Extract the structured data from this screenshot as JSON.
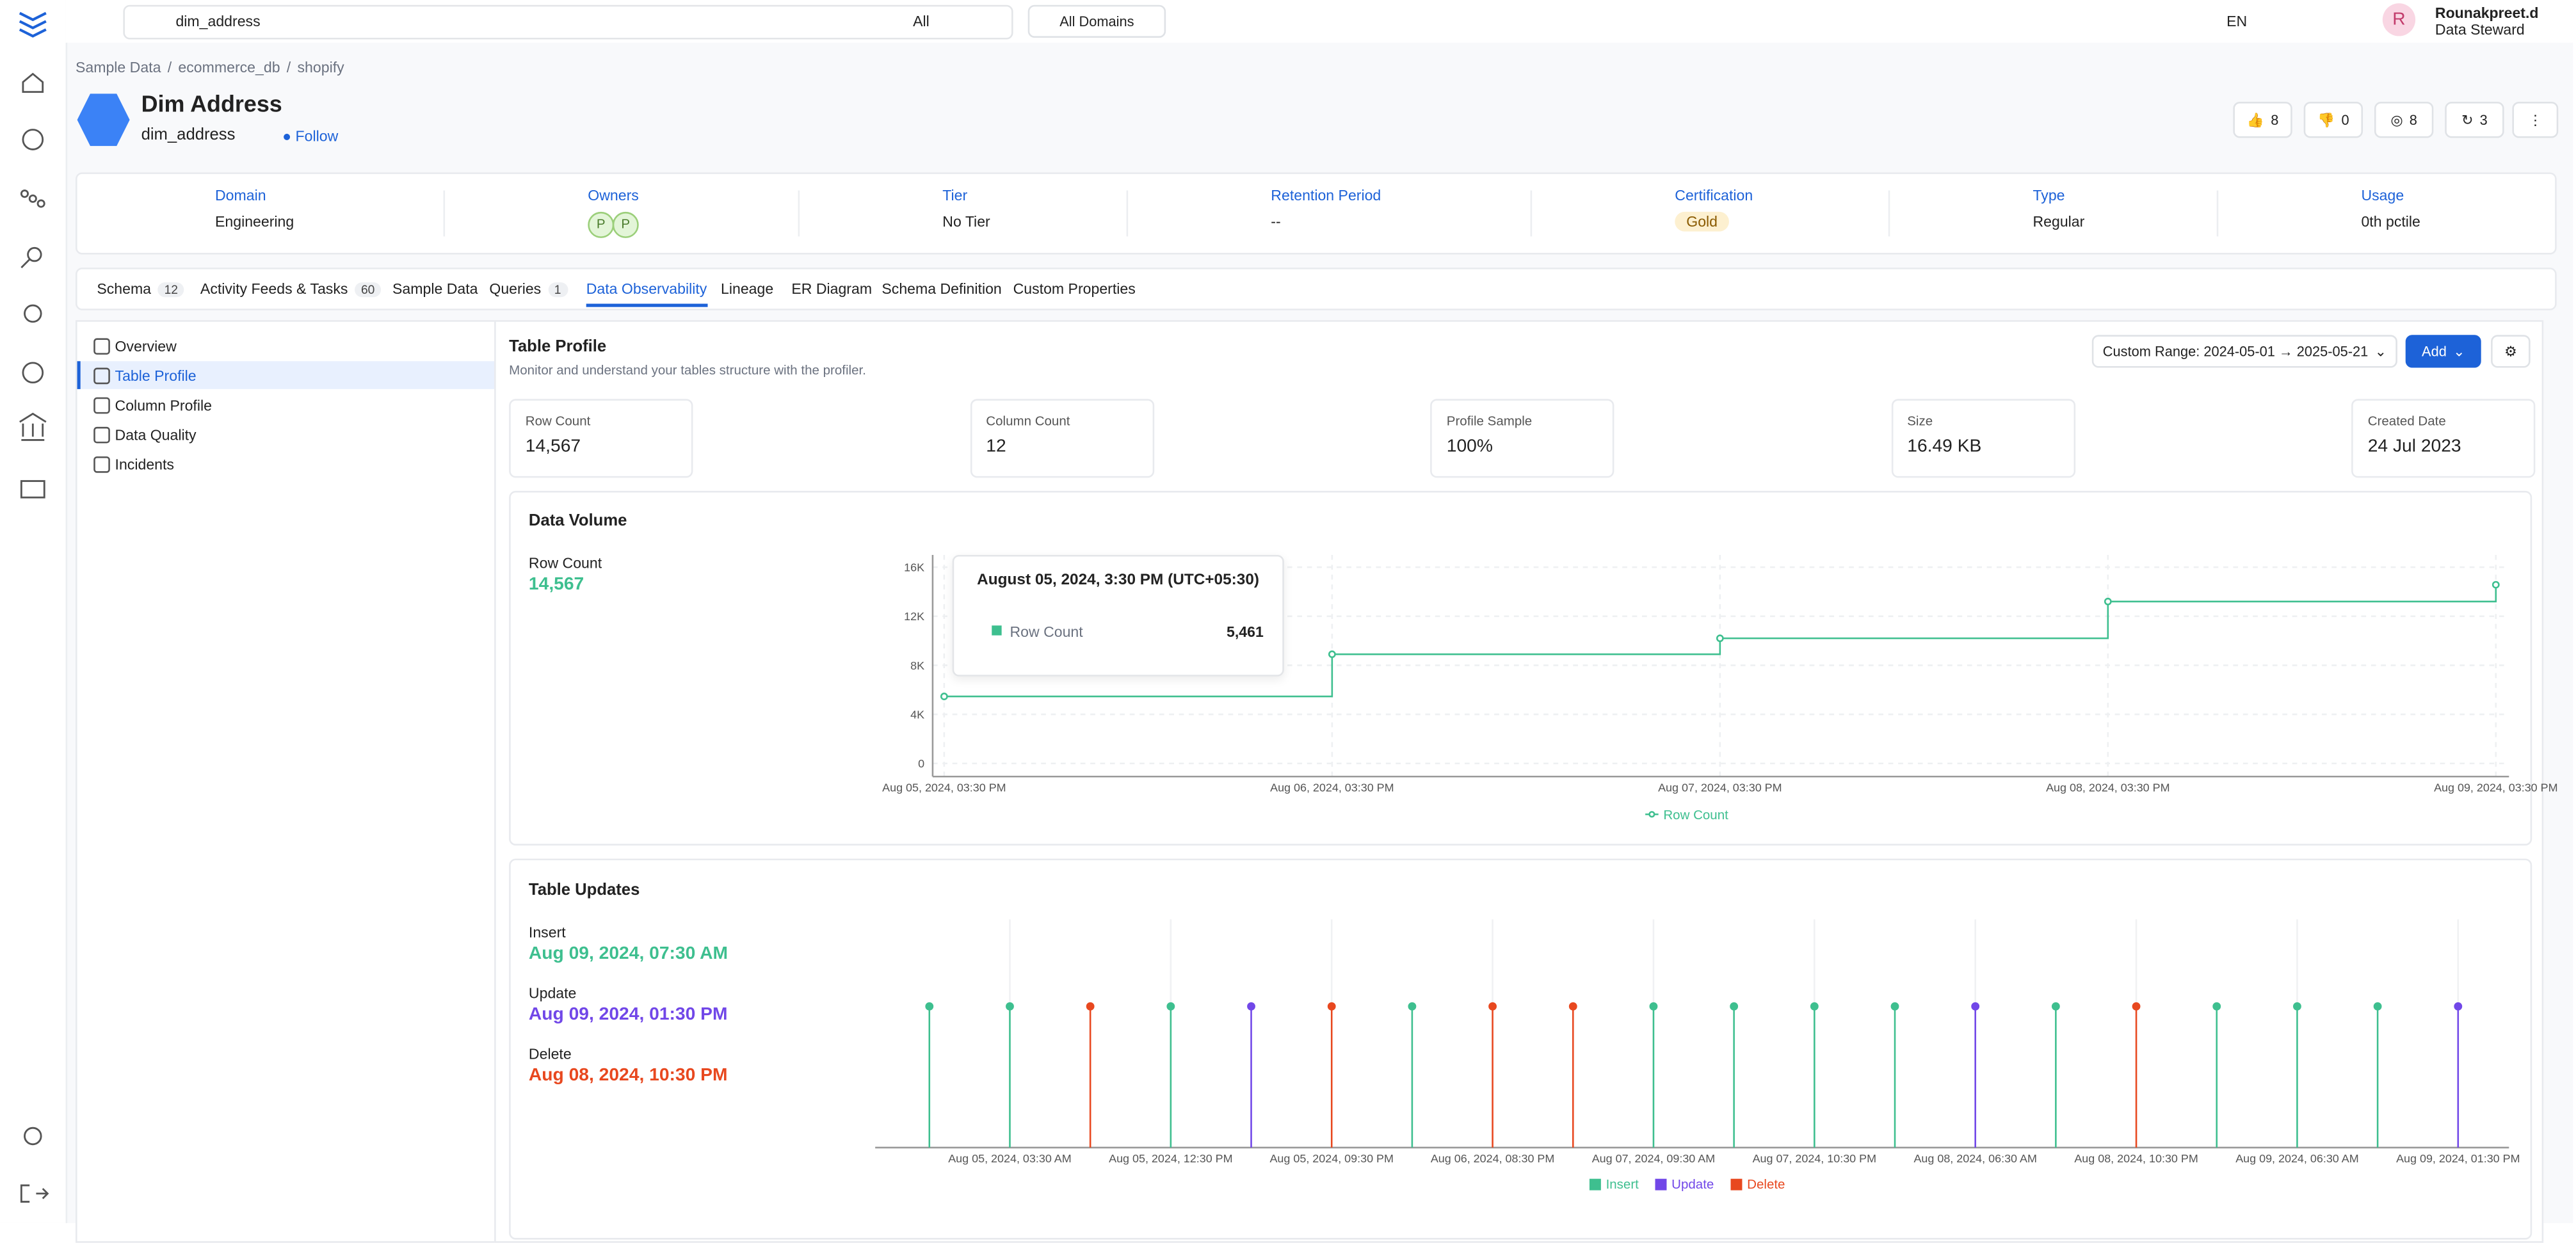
{
  "top_bar": {
    "search": "dim_address",
    "filter": "All",
    "domains": "All Domains",
    "lang": "EN",
    "user": {
      "initial": "R",
      "name": "Rounakpreet.d",
      "role": "Data Steward"
    }
  },
  "breadcrumb": [
    "Sample Data",
    "ecommerce_db",
    "shopify"
  ],
  "header": {
    "title": "Dim Address",
    "fqn": "dim_address",
    "follow": "Follow",
    "up_votes": 8,
    "down_votes": 0,
    "followers": 8,
    "versions": 3
  },
  "info": [
    {
      "label": "Domain",
      "value": "Engineering"
    },
    {
      "label": "Owners",
      "avatars": [
        "P",
        "P"
      ]
    },
    {
      "label": "Tier",
      "value": "No Tier"
    },
    {
      "label": "Retention Period",
      "value": "--"
    },
    {
      "label": "Certification",
      "value": "Gold"
    },
    {
      "label": "Type",
      "value": "Regular"
    },
    {
      "label": "Usage",
      "value": "0th pctile"
    }
  ],
  "tabs": [
    {
      "name": "Schema",
      "count": 12
    },
    {
      "name": "Activity Feeds & Tasks",
      "count": 60
    },
    {
      "name": "Sample Data"
    },
    {
      "name": "Queries",
      "count": 1
    },
    {
      "name": "Data Observability"
    },
    {
      "name": "Lineage"
    },
    {
      "name": "ER Diagram"
    },
    {
      "name": "Schema Definition"
    },
    {
      "name": "Custom Properties"
    }
  ],
  "side_menu": [
    "Overview",
    "Table Profile",
    "Column Profile",
    "Data Quality",
    "Incidents"
  ],
  "profile": {
    "title": "Table Profile",
    "subtitle": "Monitor and understand your tables structure with the profiler.",
    "range": "Custom Range: 2024-05-01 → 2025-05-21",
    "add": "Add",
    "stats": [
      {
        "label": "Row Count",
        "value": "14,567"
      },
      {
        "label": "Column Count",
        "value": "12"
      },
      {
        "label": "Profile Sample",
        "value": "100%"
      },
      {
        "label": "Size",
        "value": "16.49 KB"
      },
      {
        "label": "Created Date",
        "value": "24 Jul 2023"
      }
    ]
  },
  "data_volume": {
    "type": "line",
    "title": "Data Volume",
    "metric": "Row Count",
    "latest": "14,567",
    "categories": [
      "Aug 05, 2024, 03:30 PM",
      "Aug 06, 2024, 03:30 PM",
      "Aug 07, 2024, 03:30 PM",
      "Aug 08, 2024, 03:30 PM",
      "Aug 09, 2024, 03:30 PM"
    ],
    "series": [
      {
        "name": "Row Count",
        "color": "#3ebf8f",
        "values": [
          5461,
          8900,
          10200,
          13200,
          14567
        ]
      }
    ],
    "ylim": [
      0,
      17000
    ],
    "yticks": [
      {
        "value": 0,
        "label": "0"
      },
      {
        "value": 4000,
        "label": "4K"
      },
      {
        "value": 8000,
        "label": "8K"
      },
      {
        "value": 12000,
        "label": "12K"
      },
      {
        "value": 16000,
        "label": "16K"
      }
    ],
    "tooltip": {
      "title": "August 05, 2024, 3:30 PM (UTC+05:30)",
      "name": "Row Count",
      "value": "5,461"
    }
  },
  "table_updates": {
    "type": "lollipop",
    "title": "Table Updates",
    "latest": [
      {
        "name": "Insert",
        "value": "Aug 09, 2024, 07:30 AM"
      },
      {
        "name": "Update",
        "value": "Aug 09, 2024, 01:30 PM"
      },
      {
        "name": "Delete",
        "value": "Aug 08, 2024, 10:30 PM"
      }
    ],
    "categories": [
      null,
      "Aug 05, 2024, 03:30 AM",
      null,
      "Aug 05, 2024, 12:30 PM",
      null,
      "Aug 05, 2024, 09:30 PM",
      null,
      "Aug 06, 2024, 08:30 PM",
      null,
      "Aug 07, 2024, 09:30 AM",
      null,
      "Aug 07, 2024, 10:30 PM",
      null,
      "Aug 08, 2024, 06:30 AM",
      null,
      "Aug 08, 2024, 10:30 PM",
      null,
      "Aug 09, 2024, 06:30 AM",
      null,
      "Aug 09, 2024, 01:30 PM"
    ],
    "kinds": [
      "Insert",
      "Insert",
      "Delete",
      "Insert",
      "Update",
      "Delete",
      "Insert",
      "Delete",
      "Delete",
      "Insert",
      "Insert",
      "Insert",
      "Insert",
      "Update",
      "Insert",
      "Delete",
      "Insert",
      "Insert",
      "Insert",
      "Update"
    ],
    "series": [
      {
        "name": "Insert",
        "color": "#3ebf8f"
      },
      {
        "name": "Update",
        "color": "#7147e8"
      },
      {
        "name": "Delete",
        "color": "#e8481f"
      }
    ]
  }
}
